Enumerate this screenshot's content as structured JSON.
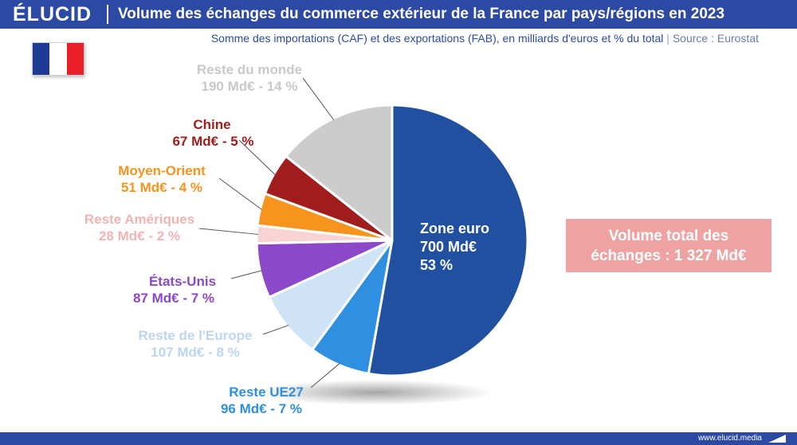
{
  "header": {
    "brand": "ÉLUCID",
    "title": "Volume des échanges du commerce extérieur de la France par pays/régions en 2023",
    "subtitle_main": "Somme des importations (CAF) et des exportations (FAB), en milliards d'euros et % du total",
    "subtitle_sep": "|",
    "subtitle_source": "Source : Eurostat"
  },
  "total_box": {
    "line1": "Volume total des",
    "line2": "échanges : 1 327 Md€"
  },
  "footer": {
    "url": "www.elucid.media"
  },
  "colors": {
    "header_bg": "#2c4aa3",
    "total_box": "#efa2a2"
  },
  "chart_data": {
    "type": "pie",
    "title": "Volume des échanges du commerce extérieur de la France par pays/régions en 2023",
    "unit": "Md€",
    "total": 1327,
    "slices": [
      {
        "name": "Zone euro",
        "value": 700,
        "percent": 53,
        "value_text": "700 Md€",
        "percent_text": "53 %",
        "color": "#2250a0"
      },
      {
        "name": "Reste UE27",
        "value": 96,
        "percent": 7,
        "detail": "96 Md€ - 7 %",
        "color": "#2f8fe0"
      },
      {
        "name": "Reste de l'Europe",
        "value": 107,
        "percent": 8,
        "detail": "107 Md€ - 8 %",
        "color": "#cfe3f7"
      },
      {
        "name": "États-Unis",
        "value": 87,
        "percent": 7,
        "detail": "87 Md€ - 7 %",
        "color": "#8b49c9"
      },
      {
        "name": "Reste Amériques",
        "value": 28,
        "percent": 2,
        "detail": "28 Md€ - 2 %",
        "color": "#f7d3d3"
      },
      {
        "name": "Moyen-Orient",
        "value": 51,
        "percent": 4,
        "detail": "51 Md€ - 4 %",
        "color": "#f7941d"
      },
      {
        "name": "Chine",
        "value": 67,
        "percent": 5,
        "detail": "67 Md€ - 5 %",
        "color": "#a11c1c"
      },
      {
        "name": "Reste du monde",
        "value": 190,
        "percent": 14,
        "detail": "190 Md€ - 14 %",
        "color": "#cccccc"
      }
    ]
  }
}
